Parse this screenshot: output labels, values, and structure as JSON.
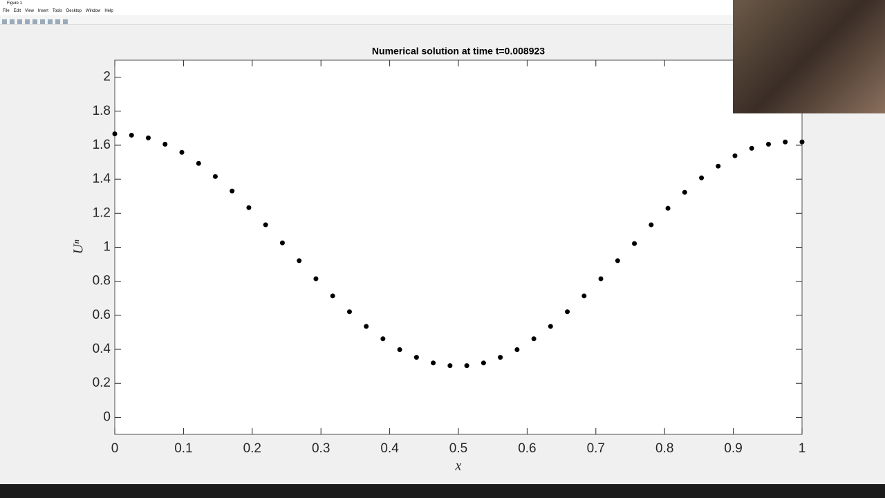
{
  "window": {
    "title": "Figure 1",
    "menu": [
      "File",
      "Edit",
      "View",
      "Insert",
      "Tools",
      "Desktop",
      "Window",
      "Help"
    ]
  },
  "chart_data": {
    "type": "scatter",
    "title": "Numerical solution at time t=0.008923",
    "x_label": "x",
    "y_label": "Uⁿ",
    "x": [
      0,
      0.0244,
      0.0488,
      0.0732,
      0.0976,
      0.122,
      0.1463,
      0.1707,
      0.1951,
      0.2195,
      0.2439,
      0.2683,
      0.2927,
      0.3171,
      0.3415,
      0.3659,
      0.3902,
      0.4146,
      0.439,
      0.4634,
      0.4878,
      0.5122,
      0.5366,
      0.561,
      0.5854,
      0.6098,
      0.6341,
      0.6585,
      0.6829,
      0.7073,
      0.7317,
      0.7561,
      0.7805,
      0.8049,
      0.8293,
      0.8537,
      0.878,
      0.9024,
      0.9268,
      0.9512,
      0.9756,
      1
    ],
    "values": [
      1.667,
      1.659,
      1.643,
      1.606,
      1.558,
      1.493,
      1.416,
      1.331,
      1.233,
      1.132,
      1.026,
      0.921,
      0.815,
      0.714,
      0.621,
      0.535,
      0.462,
      0.398,
      0.353,
      0.32,
      0.304,
      0.304,
      0.32,
      0.353,
      0.398,
      0.462,
      0.535,
      0.621,
      0.714,
      0.815,
      0.921,
      1.022,
      1.132,
      1.229,
      1.323,
      1.408,
      1.477,
      1.538,
      1.582,
      1.606,
      1.619,
      1.619
    ],
    "color": "#000000",
    "xlim": [
      0,
      1
    ],
    "xticks": [
      0,
      0.1,
      0.2,
      0.3,
      0.4,
      0.5,
      0.6,
      0.7,
      0.8,
      0.9,
      1
    ],
    "ylim": [
      -0.1,
      2.1
    ],
    "yticks": [
      0,
      0.2,
      0.4,
      0.6,
      0.8,
      1,
      1.2,
      1.4,
      1.6,
      1.8,
      2
    ],
    "grid": false
  }
}
